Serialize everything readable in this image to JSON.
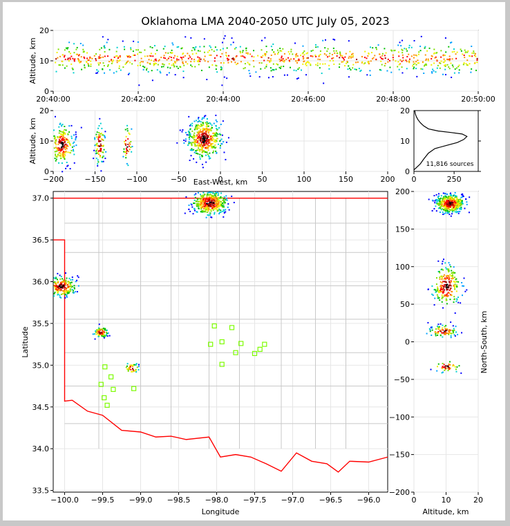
{
  "title": "Oklahoma LMA 2040-2050 UTC July 05, 2023",
  "chart_data": [
    {
      "panel": "time-altitude",
      "type": "scatter",
      "ylabel": "Altitude, km",
      "xlim": [
        "20:40:00",
        "20:50:00"
      ],
      "ylim": [
        0,
        20
      ],
      "xticks": [
        "20:40:00",
        "20:42:00",
        "20:44:00",
        "20:46:00",
        "20:48:00",
        "20:50:00"
      ],
      "yticks": [
        "0",
        "10",
        "20"
      ],
      "grid": true
    },
    {
      "panel": "east-west-altitude",
      "type": "scatter",
      "xlabel": "East-West, km",
      "ylabel": "Altitude, km",
      "xlim": [
        -200,
        200
      ],
      "ylim": [
        0,
        20
      ],
      "xticks": [
        "−200",
        "−150",
        "−100",
        "−50",
        "0",
        "50",
        "100",
        "150",
        "200"
      ],
      "yticks": [
        "0",
        "10",
        "20"
      ],
      "grid": true,
      "clusters": [
        {
          "x": -190,
          "y": 9,
          "density": "high"
        },
        {
          "x": -145,
          "y": 9,
          "density": "medium"
        },
        {
          "x": -112,
          "y": 9,
          "density": "low"
        },
        {
          "x": -20,
          "y": 11,
          "density": "very high"
        }
      ]
    },
    {
      "panel": "altitude-histogram",
      "type": "line",
      "xlim": [
        0,
        400
      ],
      "ylim": [
        0,
        20
      ],
      "xticks": [
        "0",
        "250"
      ],
      "yticks": [
        "0",
        "10",
        "20"
      ],
      "annotation": "11,816 sources",
      "profile": [
        [
          0,
          0.5
        ],
        [
          20,
          1.5
        ],
        [
          40,
          2.5
        ],
        [
          60,
          4
        ],
        [
          90,
          6
        ],
        [
          130,
          7.5
        ],
        [
          200,
          8.5
        ],
        [
          270,
          9.5
        ],
        [
          310,
          10.5
        ],
        [
          330,
          11.5
        ],
        [
          300,
          12.3
        ],
        [
          230,
          12.8
        ],
        [
          150,
          13.3
        ],
        [
          90,
          14
        ],
        [
          60,
          15
        ],
        [
          40,
          16
        ],
        [
          25,
          17
        ],
        [
          15,
          18
        ],
        [
          8,
          19
        ],
        [
          5,
          20
        ]
      ]
    },
    {
      "panel": "map",
      "type": "scatter",
      "xlabel": "Longitude",
      "ylabel": "Latitude",
      "xlim": [
        -100.15,
        -95.75
      ],
      "ylim": [
        33.48,
        37.08
      ],
      "xticks": [
        "−100.0",
        "−99.5",
        "−99.0",
        "−98.5",
        "−98.0",
        "−97.5",
        "−97.0",
        "−96.5",
        "−96.0"
      ],
      "yticks": [
        "33.5",
        "34.0",
        "34.5",
        "35.0",
        "35.5",
        "36.0",
        "36.5",
        "37.0"
      ],
      "grid": true,
      "clusters": [
        {
          "lon": -98.1,
          "lat": 36.95,
          "density": "very high"
        },
        {
          "lon": -100.05,
          "lat": 35.95,
          "density": "high"
        },
        {
          "lon": -99.53,
          "lat": 35.4,
          "density": "medium"
        },
        {
          "lon": -99.12,
          "lat": 34.97,
          "density": "low"
        }
      ],
      "stations": [
        [
          -98.03,
          35.47
        ],
        [
          -97.8,
          35.45
        ],
        [
          -98.08,
          35.25
        ],
        [
          -97.93,
          35.28
        ],
        [
          -97.68,
          35.26
        ],
        [
          -97.37,
          35.25
        ],
        [
          -97.43,
          35.19
        ],
        [
          -97.75,
          35.15
        ],
        [
          -97.5,
          35.14
        ],
        [
          -97.93,
          35.01
        ],
        [
          -99.47,
          34.98
        ],
        [
          -99.39,
          34.86
        ],
        [
          -99.52,
          34.77
        ],
        [
          -99.09,
          34.72
        ],
        [
          -99.36,
          34.71
        ],
        [
          -99.48,
          34.61
        ],
        [
          -99.44,
          34.52
        ]
      ]
    },
    {
      "panel": "altitude-north-south",
      "type": "scatter",
      "xlabel": "Altitude, km",
      "ylabel": "North-South, km",
      "xlim": [
        0,
        20
      ],
      "ylim": [
        -200,
        200
      ],
      "xticks": [
        "0",
        "10",
        "20"
      ],
      "yticks": [
        "−200",
        "−150",
        "−100",
        "−50",
        "0",
        "50",
        "100",
        "150",
        "200"
      ],
      "grid": true,
      "clusters": [
        {
          "x": 11,
          "y": 185,
          "density": "very high"
        },
        {
          "x": 10,
          "y": 75,
          "density": "high"
        },
        {
          "x": 9,
          "y": 15,
          "density": "medium"
        },
        {
          "x": 10,
          "y": -32,
          "density": "low"
        }
      ]
    }
  ],
  "colors": {
    "border": "#ff0000",
    "counties": "#c8c8c8",
    "stations": "#7cfc00",
    "axis": "#000000"
  }
}
